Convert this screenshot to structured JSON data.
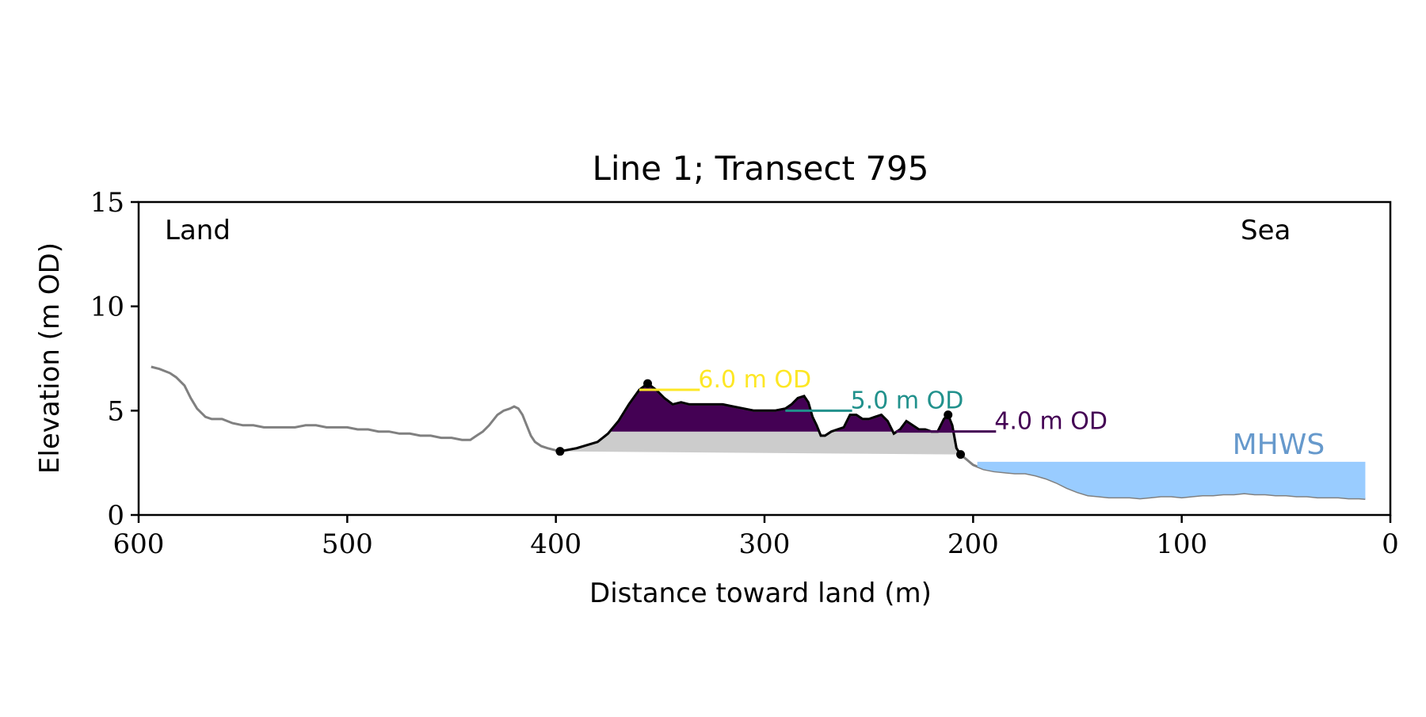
{
  "chart_data": {
    "type": "line",
    "title": "Line 1; Transect 795",
    "xlabel": "Distance toward land (m)",
    "ylabel": "Elevation (m OD)",
    "xlim": [
      600,
      0
    ],
    "ylim": [
      0,
      15
    ],
    "x_ticks": [
      600,
      500,
      400,
      300,
      200,
      100,
      0
    ],
    "y_ticks": [
      0,
      5,
      10,
      15
    ],
    "grid": false,
    "corner_labels": {
      "left": "Land",
      "right": "Sea"
    },
    "colors": {
      "profile": "#808080",
      "dune_outline": "#000000",
      "dune_fill": "#cccccc",
      "level_6": "#fde725",
      "level_5": "#21918c",
      "level_4": "#440154",
      "water": "#99ccff",
      "mhws_text": "#6699cc"
    },
    "profile": {
      "x": [
        594,
        590,
        585,
        582,
        578,
        575,
        572,
        568,
        565,
        560,
        555,
        550,
        545,
        540,
        535,
        530,
        525,
        520,
        515,
        510,
        505,
        500,
        495,
        490,
        485,
        480,
        475,
        470,
        465,
        460,
        455,
        450,
        445,
        441,
        438,
        435,
        432,
        428,
        425,
        422,
        420,
        418,
        416,
        414,
        412,
        410,
        407,
        404,
        400,
        398,
        390,
        380,
        375,
        370,
        365,
        360,
        356,
        352,
        348,
        344,
        340,
        336,
        333,
        330,
        325,
        320,
        315,
        310,
        305,
        300,
        295,
        290,
        287,
        284,
        281,
        279,
        277,
        275,
        273,
        271,
        268,
        265,
        262,
        259,
        256,
        253,
        250,
        247,
        244,
        241,
        238,
        235,
        232,
        229,
        226,
        223,
        220,
        217,
        214,
        212,
        210,
        208,
        206,
        200,
        195,
        190,
        185,
        180,
        175,
        170,
        165,
        160,
        155,
        150,
        145,
        140,
        135,
        130,
        125,
        120,
        115,
        110,
        105,
        100,
        95,
        90,
        85,
        80,
        75,
        70,
        65,
        60,
        55,
        50,
        45,
        40,
        35,
        30,
        25,
        20,
        15,
        12
      ],
      "y": [
        7.1,
        7.0,
        6.8,
        6.6,
        6.2,
        5.6,
        5.1,
        4.7,
        4.6,
        4.6,
        4.4,
        4.3,
        4.3,
        4.2,
        4.2,
        4.2,
        4.2,
        4.3,
        4.3,
        4.2,
        4.2,
        4.2,
        4.1,
        4.1,
        4.0,
        4.0,
        3.9,
        3.9,
        3.8,
        3.8,
        3.7,
        3.7,
        3.6,
        3.6,
        3.8,
        4.0,
        4.3,
        4.8,
        5.0,
        5.1,
        5.2,
        5.1,
        4.8,
        4.3,
        3.8,
        3.5,
        3.3,
        3.2,
        3.1,
        3.05,
        3.2,
        3.5,
        3.9,
        4.5,
        5.3,
        6.0,
        6.3,
        6.0,
        5.6,
        5.3,
        5.4,
        5.3,
        5.3,
        5.3,
        5.3,
        5.3,
        5.2,
        5.1,
        5.0,
        5.0,
        5.0,
        5.1,
        5.3,
        5.6,
        5.7,
        5.4,
        4.7,
        4.3,
        3.8,
        3.8,
        4.0,
        4.1,
        4.2,
        4.8,
        4.8,
        4.6,
        4.6,
        4.7,
        4.8,
        4.5,
        3.9,
        4.1,
        4.5,
        4.3,
        4.1,
        4.1,
        4.0,
        4.0,
        4.6,
        4.8,
        4.3,
        3.2,
        2.9,
        2.4,
        2.2,
        2.1,
        2.05,
        2.0,
        2.0,
        1.9,
        1.75,
        1.55,
        1.3,
        1.1,
        0.95,
        0.9,
        0.85,
        0.85,
        0.85,
        0.8,
        0.85,
        0.9,
        0.9,
        0.85,
        0.9,
        0.95,
        0.95,
        1.0,
        1.0,
        1.05,
        1.0,
        1.0,
        0.95,
        0.95,
        0.9,
        0.9,
        0.85,
        0.85,
        0.85,
        0.8,
        0.8,
        0.78
      ]
    },
    "dune_points": [
      {
        "x": 398,
        "y": 3.05
      },
      {
        "x": 356,
        "y": 6.3
      },
      {
        "x": 212,
        "y": 4.8
      },
      {
        "x": 206,
        "y": 2.9
      }
    ],
    "levels": [
      {
        "label": "6.0 m OD",
        "value": 6.0,
        "x_start": 360,
        "x_end": 331,
        "color": "#fde725"
      },
      {
        "label": "5.0 m OD",
        "value": 5.0,
        "x_start": 290,
        "x_end": 258,
        "color": "#21918c"
      },
      {
        "label": "4.0 m OD",
        "value": 4.0,
        "x_start": 237,
        "x_end": 189,
        "color": "#440154"
      }
    ],
    "mhws": {
      "label": "MHWS",
      "value": 2.55,
      "x_start": 198,
      "x_end": 12
    }
  }
}
